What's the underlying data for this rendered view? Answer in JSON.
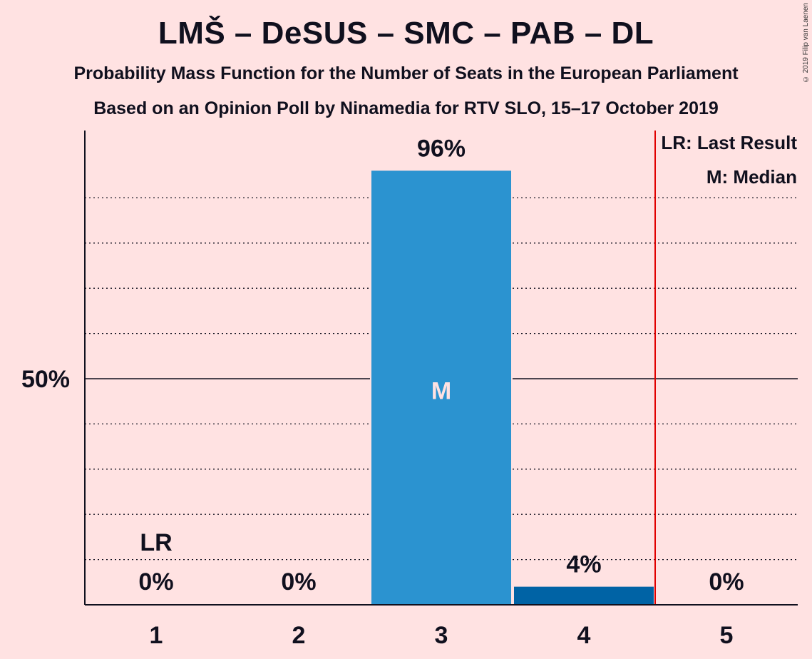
{
  "title": "LMŠ – DeSUS – SMC – PAB – DL",
  "subtitle": "Probability Mass Function for the Number of Seats in the European Parliament",
  "subtitle2": "Based on an Opinion Poll by Ninamedia for RTV SLO, 15–17 October 2019",
  "copyright": "© 2019 Filip van Laenen",
  "legend": {
    "last_result": "LR: Last Result",
    "median": "M: Median"
  },
  "colors": {
    "background": "#FFE2E2",
    "bar_main": "#2B93D0",
    "bar_secondary": "#0063A5",
    "last_result_line": "#E00000",
    "text": "#10101e"
  },
  "chart_data": {
    "type": "bar",
    "categories": [
      "1",
      "2",
      "3",
      "4",
      "5"
    ],
    "values": [
      0,
      0,
      96,
      4,
      0
    ],
    "value_labels": [
      "0%",
      "0%",
      "96%",
      "4%",
      "0%"
    ],
    "ylim": [
      0,
      105
    ],
    "y_tick_label": "50%",
    "y_tick_value": 50,
    "gridlines": [
      10,
      20,
      30,
      40,
      60,
      70,
      80,
      90
    ],
    "last_result": {
      "category": "1",
      "label": "LR"
    },
    "last_result_line_after": "4",
    "median": {
      "category": "3",
      "label": "M"
    }
  }
}
